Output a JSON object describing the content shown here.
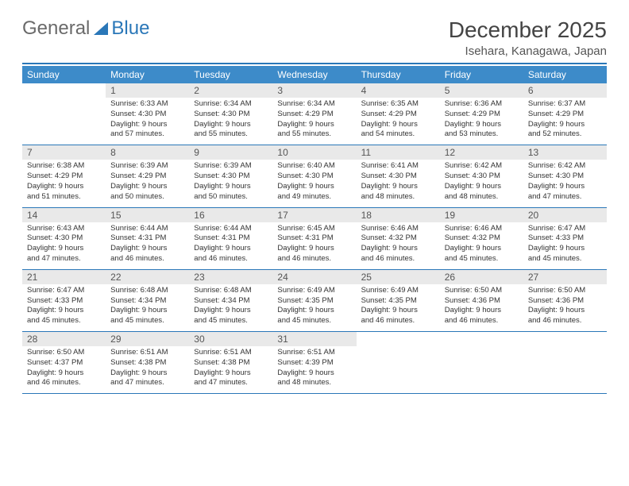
{
  "logo": {
    "text_general": "General",
    "text_blue": "Blue"
  },
  "title": "December 2025",
  "subtitle": "Isehara, Kanagawa, Japan",
  "colors": {
    "header_bg": "#3d8bc9",
    "rule": "#2a77b8",
    "daynum_bg": "#e9e9e9"
  },
  "weekdays": [
    "Sunday",
    "Monday",
    "Tuesday",
    "Wednesday",
    "Thursday",
    "Friday",
    "Saturday"
  ],
  "weeks": [
    [
      {
        "n": "",
        "lines": [
          "",
          "",
          "",
          ""
        ]
      },
      {
        "n": "1",
        "lines": [
          "Sunrise: 6:33 AM",
          "Sunset: 4:30 PM",
          "Daylight: 9 hours",
          "and 57 minutes."
        ]
      },
      {
        "n": "2",
        "lines": [
          "Sunrise: 6:34 AM",
          "Sunset: 4:30 PM",
          "Daylight: 9 hours",
          "and 55 minutes."
        ]
      },
      {
        "n": "3",
        "lines": [
          "Sunrise: 6:34 AM",
          "Sunset: 4:29 PM",
          "Daylight: 9 hours",
          "and 55 minutes."
        ]
      },
      {
        "n": "4",
        "lines": [
          "Sunrise: 6:35 AM",
          "Sunset: 4:29 PM",
          "Daylight: 9 hours",
          "and 54 minutes."
        ]
      },
      {
        "n": "5",
        "lines": [
          "Sunrise: 6:36 AM",
          "Sunset: 4:29 PM",
          "Daylight: 9 hours",
          "and 53 minutes."
        ]
      },
      {
        "n": "6",
        "lines": [
          "Sunrise: 6:37 AM",
          "Sunset: 4:29 PM",
          "Daylight: 9 hours",
          "and 52 minutes."
        ]
      }
    ],
    [
      {
        "n": "7",
        "lines": [
          "Sunrise: 6:38 AM",
          "Sunset: 4:29 PM",
          "Daylight: 9 hours",
          "and 51 minutes."
        ]
      },
      {
        "n": "8",
        "lines": [
          "Sunrise: 6:39 AM",
          "Sunset: 4:29 PM",
          "Daylight: 9 hours",
          "and 50 minutes."
        ]
      },
      {
        "n": "9",
        "lines": [
          "Sunrise: 6:39 AM",
          "Sunset: 4:30 PM",
          "Daylight: 9 hours",
          "and 50 minutes."
        ]
      },
      {
        "n": "10",
        "lines": [
          "Sunrise: 6:40 AM",
          "Sunset: 4:30 PM",
          "Daylight: 9 hours",
          "and 49 minutes."
        ]
      },
      {
        "n": "11",
        "lines": [
          "Sunrise: 6:41 AM",
          "Sunset: 4:30 PM",
          "Daylight: 9 hours",
          "and 48 minutes."
        ]
      },
      {
        "n": "12",
        "lines": [
          "Sunrise: 6:42 AM",
          "Sunset: 4:30 PM",
          "Daylight: 9 hours",
          "and 48 minutes."
        ]
      },
      {
        "n": "13",
        "lines": [
          "Sunrise: 6:42 AM",
          "Sunset: 4:30 PM",
          "Daylight: 9 hours",
          "and 47 minutes."
        ]
      }
    ],
    [
      {
        "n": "14",
        "lines": [
          "Sunrise: 6:43 AM",
          "Sunset: 4:30 PM",
          "Daylight: 9 hours",
          "and 47 minutes."
        ]
      },
      {
        "n": "15",
        "lines": [
          "Sunrise: 6:44 AM",
          "Sunset: 4:31 PM",
          "Daylight: 9 hours",
          "and 46 minutes."
        ]
      },
      {
        "n": "16",
        "lines": [
          "Sunrise: 6:44 AM",
          "Sunset: 4:31 PM",
          "Daylight: 9 hours",
          "and 46 minutes."
        ]
      },
      {
        "n": "17",
        "lines": [
          "Sunrise: 6:45 AM",
          "Sunset: 4:31 PM",
          "Daylight: 9 hours",
          "and 46 minutes."
        ]
      },
      {
        "n": "18",
        "lines": [
          "Sunrise: 6:46 AM",
          "Sunset: 4:32 PM",
          "Daylight: 9 hours",
          "and 46 minutes."
        ]
      },
      {
        "n": "19",
        "lines": [
          "Sunrise: 6:46 AM",
          "Sunset: 4:32 PM",
          "Daylight: 9 hours",
          "and 45 minutes."
        ]
      },
      {
        "n": "20",
        "lines": [
          "Sunrise: 6:47 AM",
          "Sunset: 4:33 PM",
          "Daylight: 9 hours",
          "and 45 minutes."
        ]
      }
    ],
    [
      {
        "n": "21",
        "lines": [
          "Sunrise: 6:47 AM",
          "Sunset: 4:33 PM",
          "Daylight: 9 hours",
          "and 45 minutes."
        ]
      },
      {
        "n": "22",
        "lines": [
          "Sunrise: 6:48 AM",
          "Sunset: 4:34 PM",
          "Daylight: 9 hours",
          "and 45 minutes."
        ]
      },
      {
        "n": "23",
        "lines": [
          "Sunrise: 6:48 AM",
          "Sunset: 4:34 PM",
          "Daylight: 9 hours",
          "and 45 minutes."
        ]
      },
      {
        "n": "24",
        "lines": [
          "Sunrise: 6:49 AM",
          "Sunset: 4:35 PM",
          "Daylight: 9 hours",
          "and 45 minutes."
        ]
      },
      {
        "n": "25",
        "lines": [
          "Sunrise: 6:49 AM",
          "Sunset: 4:35 PM",
          "Daylight: 9 hours",
          "and 46 minutes."
        ]
      },
      {
        "n": "26",
        "lines": [
          "Sunrise: 6:50 AM",
          "Sunset: 4:36 PM",
          "Daylight: 9 hours",
          "and 46 minutes."
        ]
      },
      {
        "n": "27",
        "lines": [
          "Sunrise: 6:50 AM",
          "Sunset: 4:36 PM",
          "Daylight: 9 hours",
          "and 46 minutes."
        ]
      }
    ],
    [
      {
        "n": "28",
        "lines": [
          "Sunrise: 6:50 AM",
          "Sunset: 4:37 PM",
          "Daylight: 9 hours",
          "and 46 minutes."
        ]
      },
      {
        "n": "29",
        "lines": [
          "Sunrise: 6:51 AM",
          "Sunset: 4:38 PM",
          "Daylight: 9 hours",
          "and 47 minutes."
        ]
      },
      {
        "n": "30",
        "lines": [
          "Sunrise: 6:51 AM",
          "Sunset: 4:38 PM",
          "Daylight: 9 hours",
          "and 47 minutes."
        ]
      },
      {
        "n": "31",
        "lines": [
          "Sunrise: 6:51 AM",
          "Sunset: 4:39 PM",
          "Daylight: 9 hours",
          "and 48 minutes."
        ]
      },
      {
        "n": "",
        "lines": [
          "",
          "",
          "",
          ""
        ]
      },
      {
        "n": "",
        "lines": [
          "",
          "",
          "",
          ""
        ]
      },
      {
        "n": "",
        "lines": [
          "",
          "",
          "",
          ""
        ]
      }
    ]
  ]
}
